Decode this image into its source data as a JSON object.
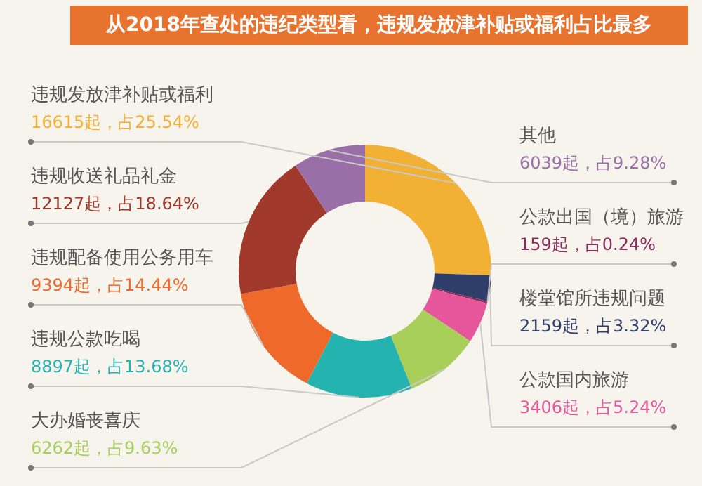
{
  "chart_data": {
    "type": "donut",
    "title": "从2018年查处的违纪类型看，违规发放津补贴或福利占比最多",
    "categories": [
      "违规发放津补贴或福利",
      "楼堂馆所违规问题",
      "公款出国（境）旅游",
      "公款国内旅游",
      "大办婚丧喜庆",
      "违规公款吃喝",
      "违规配备使用公务用车",
      "违规收送礼品礼金",
      "其他"
    ],
    "values": [
      16615,
      2159,
      159,
      3406,
      6262,
      8897,
      9394,
      12127,
      6039
    ],
    "value_labels": [
      "16615起，占25.54%",
      "2159起，占3.32%",
      "159起，占0.24%",
      "3406起，占5.24%",
      "6262起，占9.63%",
      "8897起，占13.68%",
      "9394起，占14.44%",
      "12127起，占18.64%",
      "6039起，占9.28%"
    ],
    "colors": [
      "#f2b134",
      "#2f3d6b",
      "#8b2c5a",
      "#e5579a",
      "#a8cf5a",
      "#25b3b0",
      "#ef6a2a",
      "#a0392b",
      "#9a6fa8"
    ],
    "legend": false
  }
}
